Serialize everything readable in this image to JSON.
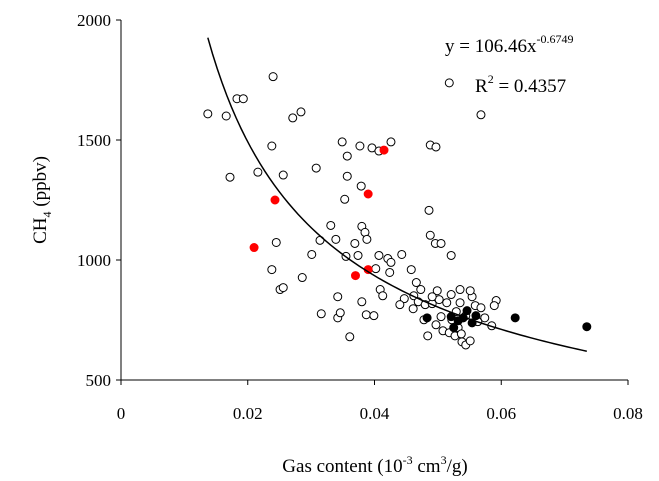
{
  "chart_data": {
    "type": "scatter",
    "xlabel": [
      "Gas content (10",
      "-3",
      " cm",
      "3",
      "/g)"
    ],
    "ylabel": [
      "CH",
      "4",
      " (ppbv)"
    ],
    "xlim": [
      0,
      0.08
    ],
    "xticks": [
      0,
      0.02,
      0.04,
      0.06,
      0.08
    ],
    "ylim": [
      500,
      2000
    ],
    "yticks": [
      500,
      1000,
      1500,
      2000
    ],
    "equation": {
      "text": "y = 106.46x",
      "exponent": "-0.6749"
    },
    "r2": {
      "text": "R",
      "exponent": "2",
      "value": " = 0.4357"
    },
    "fit": {
      "a": 106.46,
      "b": -0.6749,
      "xrange": [
        0.0137,
        0.0735
      ],
      "color": "#000000"
    },
    "series": [
      {
        "color": "#000000",
        "filled": false,
        "x": [
          0.0137,
          0.0183,
          0.0193,
          0.0166,
          0.024,
          0.0271,
          0.0284,
          0.0238,
          0.0216,
          0.0256,
          0.0172,
          0.0245,
          0.0308,
          0.0349,
          0.0357,
          0.0377,
          0.0396,
          0.0407,
          0.0426,
          0.0488,
          0.0497,
          0.0518,
          0.0568,
          0.0486,
          0.0488,
          0.0496,
          0.0505,
          0.0379,
          0.0353,
          0.0357,
          0.0331,
          0.038,
          0.0385,
          0.0388,
          0.0369,
          0.0374,
          0.0407,
          0.0421,
          0.0339,
          0.0314,
          0.0355,
          0.0301,
          0.0286,
          0.0238,
          0.0251,
          0.0256,
          0.0316,
          0.0342,
          0.0346,
          0.0342,
          0.0361,
          0.038,
          0.0387,
          0.0399,
          0.0409,
          0.0413,
          0.0402,
          0.0424,
          0.0426,
          0.0443,
          0.0458,
          0.0466,
          0.0473,
          0.0462,
          0.0447,
          0.0461,
          0.0469,
          0.048,
          0.0491,
          0.0499,
          0.0502,
          0.0514,
          0.0521,
          0.0522,
          0.0505,
          0.0508,
          0.0518,
          0.0529,
          0.0535,
          0.0544,
          0.0554,
          0.0559,
          0.0568,
          0.0574,
          0.0538,
          0.0544,
          0.0551,
          0.0585,
          0.0592,
          0.0589,
          0.0532,
          0.0527,
          0.0537,
          0.0521,
          0.044,
          0.0551,
          0.0491,
          0.0535,
          0.0478,
          0.0497,
          0.0563,
          0.0484
        ],
        "values": [
          1609,
          1672,
          1672,
          1600,
          1764,
          1592,
          1617,
          1475,
          1366,
          1354,
          1345,
          1073,
          1383,
          1492,
          1433,
          1475,
          1467,
          1454,
          1492,
          1479,
          1471,
          1738,
          1605,
          1207,
          1103,
          1069,
          1069,
          1308,
          1253,
          1349,
          1144,
          1140,
          1115,
          1086,
          1069,
          1019,
          1019,
          1006,
          1086,
          1082,
          1015,
          1023,
          927,
          960,
          877,
          885,
          776,
          759,
          780,
          847,
          680,
          826,
          772,
          768,
          877,
          851,
          964,
          948,
          990,
          1023,
          960,
          906,
          877,
          851,
          839,
          797,
          826,
          814,
          818,
          872,
          835,
          822,
          856,
          751,
          764,
          705,
          697,
          785,
          822,
          768,
          847,
          810,
          801,
          759,
          659,
          646,
          663,
          726,
          831,
          810,
          718,
          684,
          692,
          1019,
          814,
          872,
          847,
          877,
          751,
          730,
          743,
          684
        ]
      },
      {
        "color": "#ff0000",
        "filled": true,
        "x": [
          0.0415,
          0.039,
          0.0243,
          0.021,
          0.039,
          0.037
        ],
        "values": [
          1458,
          1275,
          1250,
          1052,
          960,
          935
        ]
      },
      {
        "color": "#000000",
        "filled": true,
        "x": [
          0.0483,
          0.0521,
          0.0525,
          0.0532,
          0.054,
          0.0546,
          0.0554,
          0.056,
          0.0622,
          0.0735
        ],
        "values": [
          759,
          764,
          718,
          747,
          759,
          789,
          738,
          768,
          759,
          722
        ]
      }
    ]
  }
}
